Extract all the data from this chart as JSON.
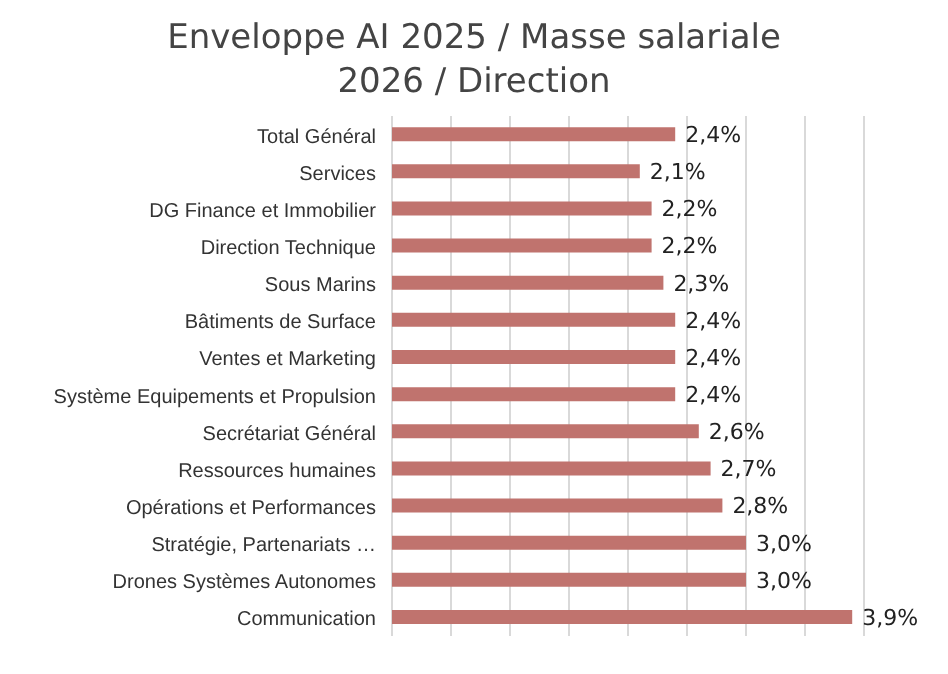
{
  "chart_data": {
    "type": "bar",
    "orientation": "horizontal",
    "title": "Enveloppe AI 2025 / Masse salariale 2026 / Direction",
    "categories": [
      "Total Général",
      "Services",
      "DG Finance et Immobilier",
      "Direction Technique",
      "Sous Marins",
      "Bâtiments de Surface",
      "Ventes et Marketing",
      "Système Equipements et Propulsion",
      "Secrétariat Général",
      "Ressources humaines",
      "Opérations et Performances",
      "Stratégie, Partenariats …",
      "Drones Systèmes Autonomes",
      "Communication"
    ],
    "values": [
      2.4,
      2.1,
      2.2,
      2.2,
      2.3,
      2.4,
      2.4,
      2.4,
      2.6,
      2.7,
      2.8,
      3.0,
      3.0,
      3.9
    ],
    "value_labels": [
      "2,4%",
      "2,1%",
      "2,2%",
      "2,2%",
      "2,3%",
      "2,4%",
      "2,4%",
      "2,4%",
      "2,6%",
      "2,7%",
      "2,8%",
      "3,0%",
      "3,0%",
      "3,9%"
    ],
    "color": "#c0736e",
    "xlim": [
      0,
      4
    ],
    "xticks": [
      {
        "value": 0,
        "label": null
      },
      {
        "value": 0.5,
        "label": null
      },
      {
        "value": 1,
        "label": null
      },
      {
        "value": 1.5,
        "label": null
      },
      {
        "value": 2,
        "label": null
      },
      {
        "value": 2.5,
        "label": null
      },
      {
        "value": 3,
        "label": null
      },
      {
        "value": 3.5,
        "label": null
      },
      {
        "value": 4,
        "label": null
      }
    ],
    "grid": "x",
    "tick_labels": "y"
  }
}
